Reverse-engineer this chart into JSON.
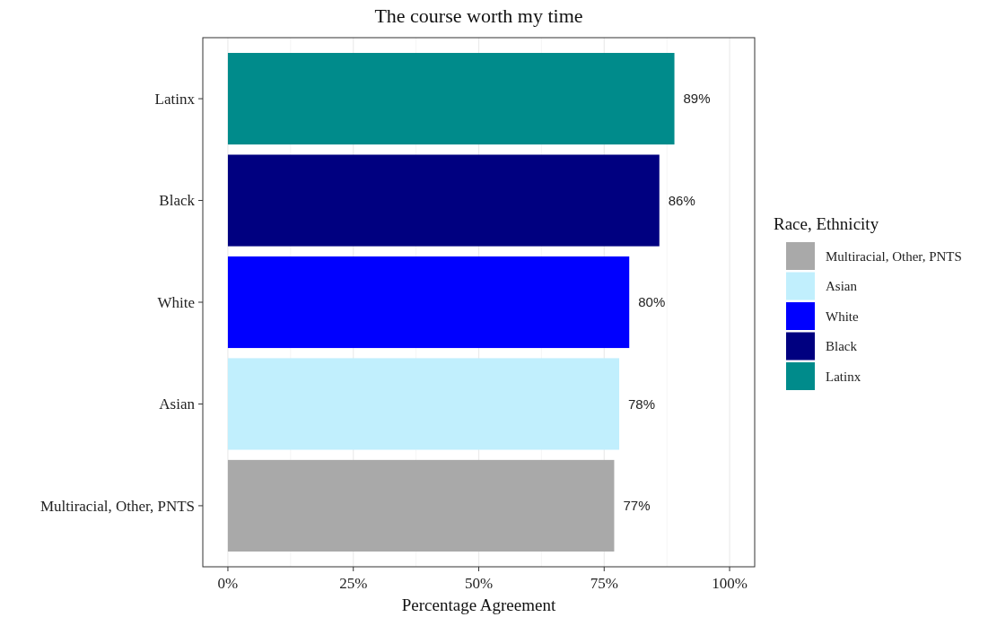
{
  "chart_data": {
    "type": "bar",
    "orientation": "horizontal",
    "stacked": true,
    "title": "The course worth my time",
    "xlabel": "Percentage Agreement",
    "legend_title": "Race, Ethnicity",
    "legend": "right",
    "grid": "x",
    "categories": [
      "Latinx",
      "Black",
      "White",
      "Asian",
      "Multiracial, Other, PNTS"
    ],
    "series": [
      {
        "name": "Multiracial, Other, PNTS",
        "color": "#a9a9a9",
        "values": [
          null,
          null,
          null,
          null,
          77
        ],
        "value_labels": [
          null,
          null,
          null,
          null,
          "77%"
        ]
      },
      {
        "name": "Asian",
        "color": "#c1effd",
        "values": [
          null,
          null,
          null,
          78,
          null
        ],
        "value_labels": [
          null,
          null,
          null,
          "78%",
          null
        ]
      },
      {
        "name": "White",
        "color": "#0000ff",
        "values": [
          null,
          null,
          80,
          null,
          null
        ],
        "value_labels": [
          null,
          null,
          "80%",
          null,
          null
        ]
      },
      {
        "name": "Black",
        "color": "#000080",
        "values": [
          null,
          86,
          null,
          null,
          null
        ],
        "value_labels": [
          null,
          "86%",
          null,
          null,
          null
        ]
      },
      {
        "name": "Latinx",
        "color": "#008b8b",
        "values": [
          89,
          null,
          null,
          null,
          null
        ],
        "value_labels": [
          "89%",
          null,
          null,
          null,
          null
        ]
      }
    ],
    "xlim": [
      -5,
      105
    ],
    "xticks": [
      {
        "value": 0,
        "label": "0%"
      },
      {
        "value": 25,
        "label": "25%"
      },
      {
        "value": 50,
        "label": "50%"
      },
      {
        "value": 75,
        "label": "75%"
      },
      {
        "value": 100,
        "label": "100%"
      }
    ]
  }
}
